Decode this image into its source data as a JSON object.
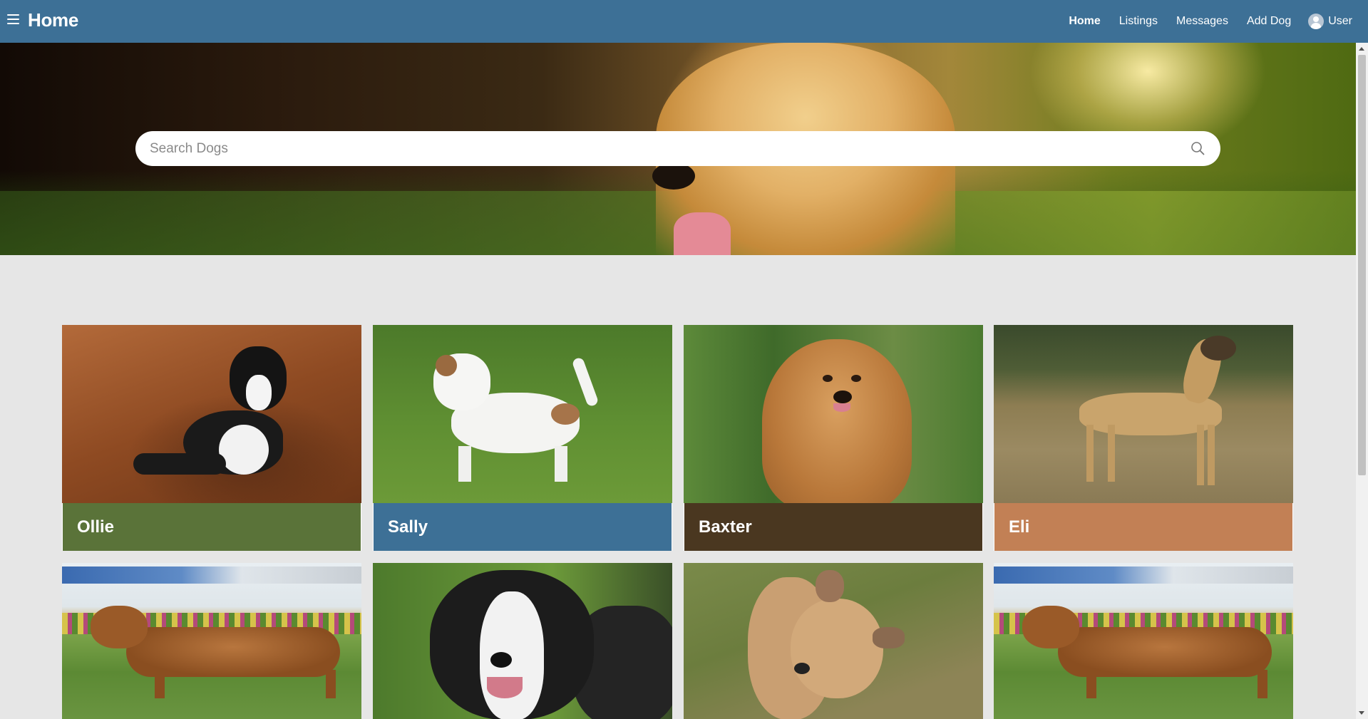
{
  "navbar": {
    "title": "Home",
    "links": [
      {
        "label": "Home",
        "active": true
      },
      {
        "label": "Listings",
        "active": false
      },
      {
        "label": "Messages",
        "active": false
      },
      {
        "label": "Add Dog",
        "active": false
      }
    ],
    "user_label": "User",
    "background": "#3d7096"
  },
  "search": {
    "placeholder": "Search Dogs",
    "value": ""
  },
  "dogs": [
    {
      "name": "Ollie",
      "label_color": "#5a7339"
    },
    {
      "name": "Sally",
      "label_color": "#3d7096"
    },
    {
      "name": "Baxter",
      "label_color": "#4a3720"
    },
    {
      "name": "Eli",
      "label_color": "#c28055"
    },
    {
      "name": "",
      "label_color": ""
    },
    {
      "name": "",
      "label_color": ""
    },
    {
      "name": "",
      "label_color": ""
    },
    {
      "name": "",
      "label_color": ""
    }
  ]
}
